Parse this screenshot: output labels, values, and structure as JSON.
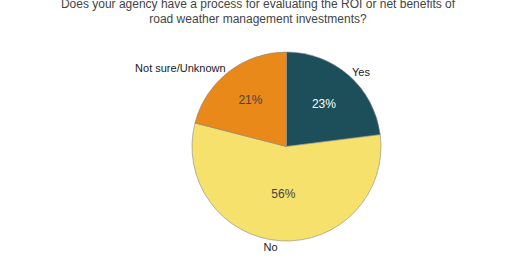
{
  "chart_data": {
    "type": "pie",
    "title": "Does your agency have a process for evaluating the ROI or net benefits of\nroad weather management investments?",
    "categories": [
      "Yes",
      "No",
      "Not sure/Unknown"
    ],
    "values": [
      23,
      56,
      21
    ],
    "value_labels": [
      "23%",
      "56%",
      "21%"
    ],
    "colors": [
      "#1c4f5a",
      "#f5e16b",
      "#e8891a"
    ],
    "data_labels": true
  }
}
